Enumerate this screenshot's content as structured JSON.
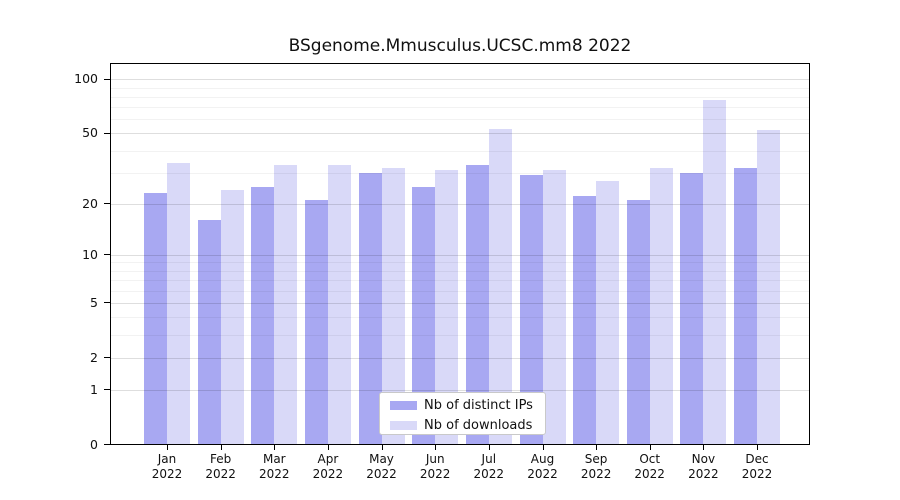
{
  "title": "BSgenome.Mmusculus.UCSC.mm8 2022",
  "chart_data": {
    "type": "bar",
    "categories": [
      "Jan",
      "Feb",
      "Mar",
      "Apr",
      "May",
      "Jun",
      "Jul",
      "Aug",
      "Sep",
      "Oct",
      "Nov",
      "Dec"
    ],
    "year_label": "2022",
    "series": [
      {
        "name": "Nb of distinct IPs",
        "color": "#a8a8f2",
        "values": [
          23,
          16,
          25,
          21,
          30,
          25,
          33,
          29,
          22,
          21,
          30,
          32
        ]
      },
      {
        "name": "Nb of downloads",
        "color": "#d9d9f8",
        "values": [
          34,
          24,
          33,
          33,
          32,
          31,
          53,
          31,
          27,
          32,
          77,
          52
        ]
      }
    ],
    "title": "BSgenome.Mmusculus.UCSC.mm8 2022",
    "xlabel": "",
    "ylabel": "",
    "yscale": "log1p",
    "ylim": [
      0,
      120
    ],
    "yticks": [
      0,
      1,
      2,
      5,
      10,
      20,
      50,
      100
    ],
    "minor_gridlines": [
      3,
      4,
      6,
      7,
      8,
      9,
      30,
      40,
      60,
      70,
      80,
      90
    ],
    "grid": "on",
    "legend_position": "lower center"
  },
  "colors": {
    "distinct_ips": "#a8a8f2",
    "downloads": "#d9d9f8",
    "spine": "#000000",
    "grid_major": "rgba(0,0,0,0.13)",
    "grid_minor": "rgba(0,0,0,0.05)"
  }
}
